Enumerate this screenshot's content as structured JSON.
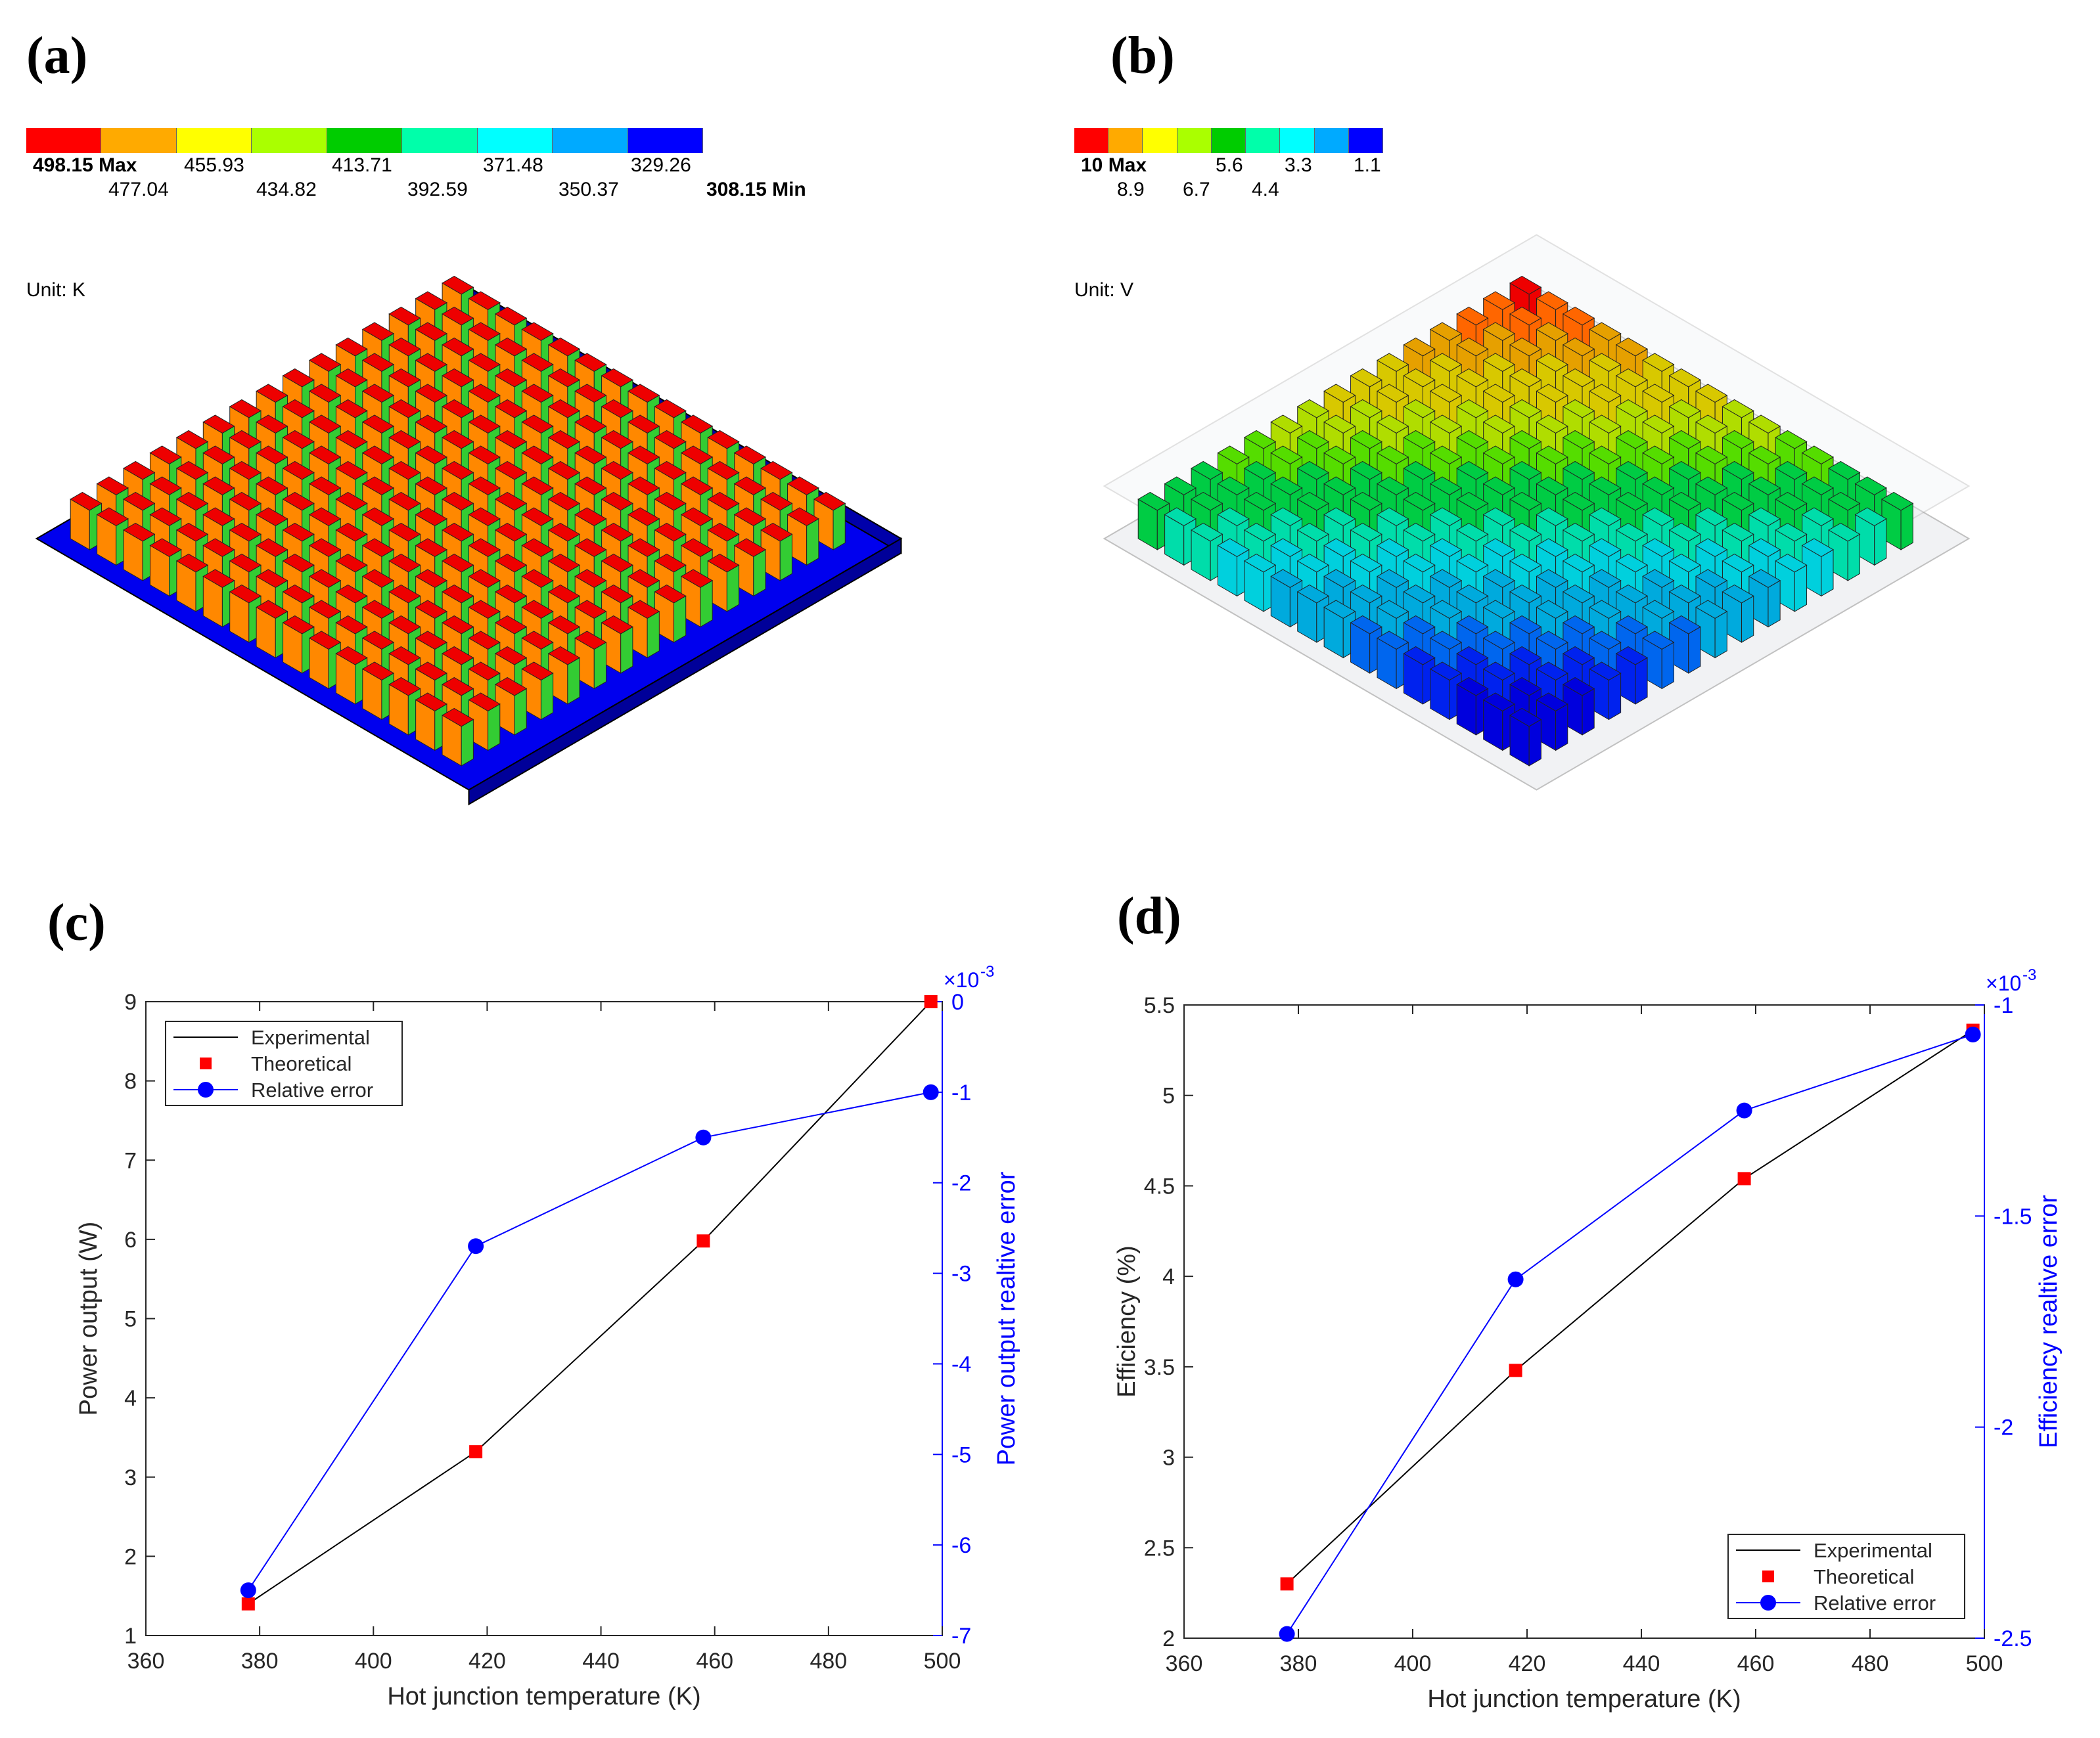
{
  "panels": {
    "a": {
      "label": "(a)",
      "unit": "Unit: K",
      "colorbar": {
        "colors": [
          "#ff0000",
          "#ffaa00",
          "#ffff00",
          "#aaff00",
          "#00cc00",
          "#00ffaa",
          "#00ffff",
          "#00aaff",
          "#0000ff"
        ],
        "top_labels": [
          "498.15 Max",
          "455.93",
          "413.71",
          "371.48",
          "329.26"
        ],
        "bottom_labels": [
          "477.04",
          "434.82",
          "392.59",
          "350.37",
          "308.15 Min"
        ]
      }
    },
    "b": {
      "label": "(b)",
      "unit": "Unit: V",
      "colorbar": {
        "colors": [
          "#ff0000",
          "#ffaa00",
          "#ffff00",
          "#aaff00",
          "#00cc00",
          "#00ffaa",
          "#00ffff",
          "#00aaff",
          "#0000ff"
        ],
        "top_labels": [
          "10 Max",
          "5.6",
          "3.3",
          "1.1"
        ],
        "bottom_labels": [
          "8.9",
          "6.7",
          "4.4"
        ]
      }
    },
    "c": {
      "label": "(c)"
    },
    "d": {
      "label": "(d)"
    }
  },
  "chart_data": [
    {
      "type": "line",
      "id": "c",
      "xlabel": "Hot junction temperature (K)",
      "ylabel": "Power output (W)",
      "y2label": "Power output realtive error",
      "y2_exponent": "×10",
      "y2_exponent_power": "-3",
      "xlim": [
        360,
        500
      ],
      "ylim": [
        1,
        9
      ],
      "y2lim": [
        -7,
        0
      ],
      "xticks": [
        360,
        380,
        400,
        420,
        440,
        460,
        480,
        500
      ],
      "yticks": [
        1,
        2,
        3,
        4,
        5,
        6,
        7,
        8,
        9
      ],
      "y2ticks": [
        -7,
        -6,
        -5,
        -4,
        -3,
        -2,
        -1,
        0
      ],
      "legend_position": "top-left",
      "series": [
        {
          "name": "Experimental",
          "axis": "left",
          "color": "#000000",
          "style": "line",
          "x": [
            378,
            418,
            458,
            498
          ],
          "y": [
            1.4,
            3.32,
            5.98,
            9.0
          ]
        },
        {
          "name": "Theoretical",
          "axis": "left",
          "color": "#ff0000",
          "style": "square",
          "x": [
            378,
            418,
            458,
            498
          ],
          "y": [
            1.4,
            3.32,
            5.98,
            9.0
          ]
        },
        {
          "name": "Relative error",
          "axis": "right",
          "color": "#0000ff",
          "style": "line-circle",
          "x": [
            378,
            418,
            458,
            498
          ],
          "y": [
            -6.5,
            -2.7,
            -1.5,
            -1.0
          ]
        }
      ]
    },
    {
      "type": "line",
      "id": "d",
      "xlabel": "Hot junction temperature (K)",
      "ylabel": "Efficiency (%)",
      "y2label": "Efficiency realtive error",
      "y2_exponent": "×10",
      "y2_exponent_power": "-3",
      "xlim": [
        360,
        500
      ],
      "ylim": [
        2,
        5.5
      ],
      "y2lim": [
        -2.5,
        -1
      ],
      "xticks": [
        360,
        380,
        400,
        420,
        440,
        460,
        480,
        500
      ],
      "yticks": [
        2,
        2.5,
        3,
        3.5,
        4,
        4.5,
        5,
        5.5
      ],
      "y2ticks": [
        -2.5,
        -2,
        -1.5,
        -1
      ],
      "legend_position": "bottom-right",
      "series": [
        {
          "name": "Experimental",
          "axis": "left",
          "color": "#000000",
          "style": "line",
          "x": [
            378,
            418,
            458,
            498
          ],
          "y": [
            2.3,
            3.48,
            4.54,
            5.36
          ]
        },
        {
          "name": "Theoretical",
          "axis": "left",
          "color": "#ff0000",
          "style": "square",
          "x": [
            378,
            418,
            458,
            498
          ],
          "y": [
            2.3,
            3.48,
            4.54,
            5.36
          ]
        },
        {
          "name": "Relative error",
          "axis": "right",
          "color": "#0000ff",
          "style": "line-circle",
          "x": [
            378,
            418,
            458,
            498
          ],
          "y": [
            -2.49,
            -1.65,
            -1.25,
            -1.07
          ]
        }
      ]
    }
  ]
}
